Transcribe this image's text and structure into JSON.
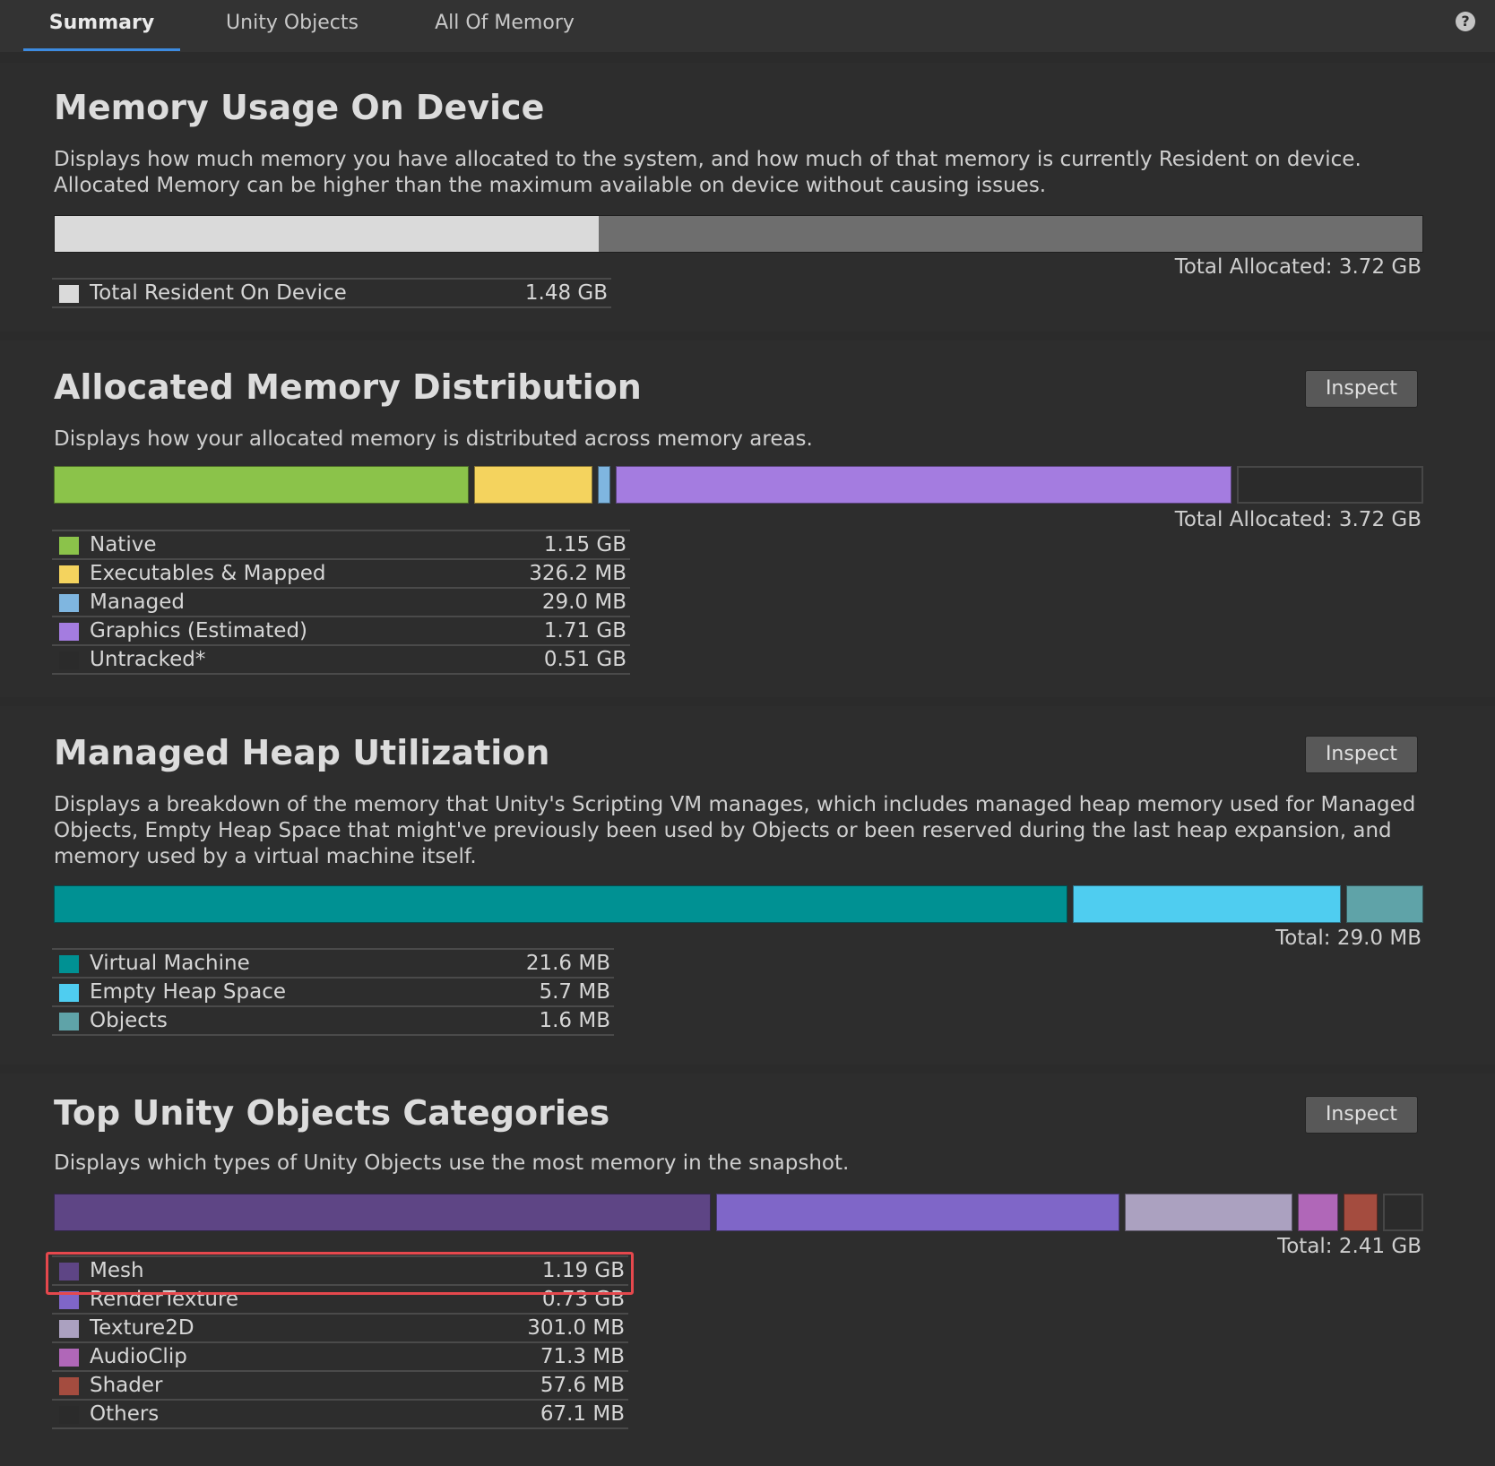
{
  "tabs": [
    {
      "label": "Summary",
      "active": true
    },
    {
      "label": "Unity Objects",
      "active": false
    },
    {
      "label": "All Of Memory",
      "active": false
    }
  ],
  "help_icon": "help-icon",
  "sections": {
    "device": {
      "title": "Memory Usage On Device",
      "description": "Displays how much memory you have allocated to the system, and how much of that memory is currently Resident on device. Allocated Memory can be higher than the maximum available on device without causing issues.",
      "total_label": "Total Allocated: 3.72 GB",
      "resident_fraction": 0.398,
      "colors": {
        "resident": "#dadada",
        "allocated": "#6e6e6e"
      },
      "legend": [
        {
          "label": "Total Resident On Device",
          "value": "1.48 GB",
          "color": "#dadada"
        }
      ]
    },
    "distribution": {
      "title": "Allocated Memory Distribution",
      "inspect_label": "Inspect",
      "description": "Displays how your allocated memory is distributed across memory areas.",
      "total_label": "Total Allocated: 3.72 GB",
      "legend": [
        {
          "label": "Native",
          "value": "1.15 GB",
          "color": "#8bc34a",
          "share": 1.15
        },
        {
          "label": "Executables & Mapped",
          "value": "326.2 MB",
          "color": "#f4d35e",
          "share": 0.326
        },
        {
          "label": "Managed",
          "value": "29.0 MB",
          "color": "#7fb6e0",
          "share": 0.029
        },
        {
          "label": "Graphics (Estimated)",
          "value": "1.71 GB",
          "color": "#a47ce0",
          "share": 1.71
        },
        {
          "label": "Untracked*",
          "value": "0.51 GB",
          "color": "#2b2b2b",
          "share": 0.51
        }
      ]
    },
    "heap": {
      "title": "Managed Heap Utilization",
      "inspect_label": "Inspect",
      "description": "Displays a breakdown of the memory that Unity's Scripting VM manages, which includes managed heap memory used for Managed Objects, Empty Heap Space that might've previously been used by Objects or been reserved during the last heap expansion, and memory used by a virtual machine itself.",
      "total_label": "Total: 29.0 MB",
      "legend": [
        {
          "label": "Virtual Machine",
          "value": "21.6 MB",
          "color": "#009193",
          "share": 21.6
        },
        {
          "label": "Empty Heap Space",
          "value": "5.7 MB",
          "color": "#4fcdf0",
          "share": 5.7
        },
        {
          "label": "Objects",
          "value": "1.6 MB",
          "color": "#5fa3a8",
          "share": 1.6
        }
      ]
    },
    "objects": {
      "title": "Top Unity Objects Categories",
      "inspect_label": "Inspect",
      "description": "Displays which types of Unity Objects use the most memory in the snapshot.",
      "total_label": "Total: 2.41 GB",
      "legend": [
        {
          "label": "Mesh",
          "value": "1.19 GB",
          "color": "#5e4585",
          "share": 1.19
        },
        {
          "label": "RenderTexture",
          "value": "0.73 GB",
          "color": "#7f66c8",
          "share": 0.73
        },
        {
          "label": "Texture2D",
          "value": "301.0 MB",
          "color": "#aba1c0",
          "share": 0.301
        },
        {
          "label": "AudioClip",
          "value": "71.3 MB",
          "color": "#b067b8",
          "share": 0.0713
        },
        {
          "label": "Shader",
          "value": "57.6 MB",
          "color": "#a44c3f",
          "share": 0.0576
        },
        {
          "label": "Others",
          "value": "67.1 MB",
          "color": "#2b2b2b",
          "share": 0.0671
        }
      ]
    }
  }
}
